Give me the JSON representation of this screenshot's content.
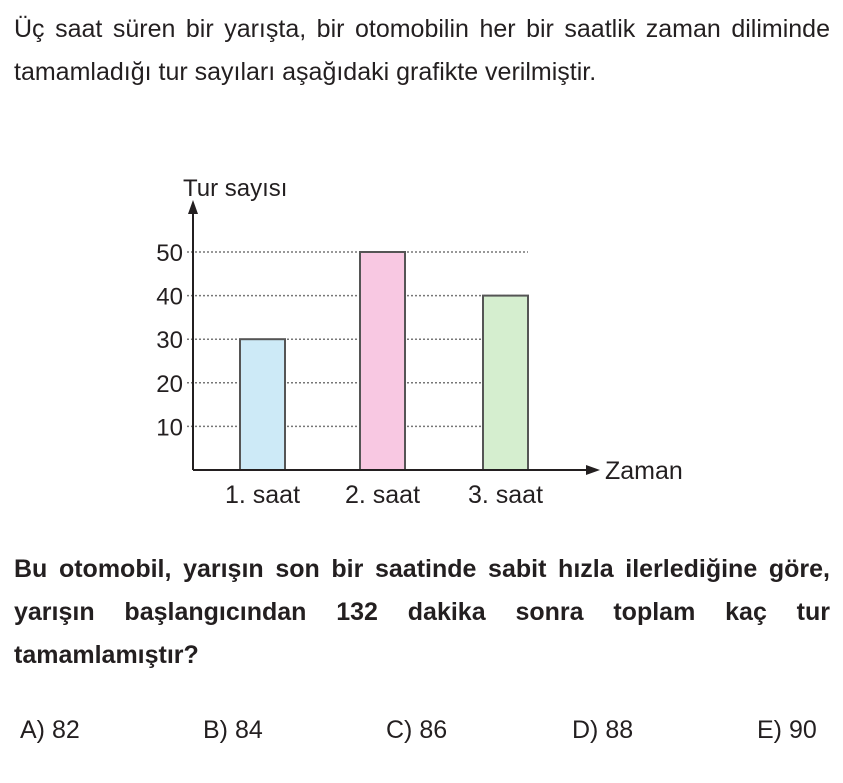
{
  "intro": "Üç saat süren bir yarışta, bir otomobilin her bir saatlik zaman diliminde tamamladığı tur sayıları aşağıdaki grafikte verilmiştir.",
  "question": "Bu otomobil, yarışın son bir saatinde sabit hızla ilerlediğine göre, yarışın başlangıcından 132 dakika sonra toplam kaç tur tamamlamıştır?",
  "answers": [
    "A) 82",
    "B) 84",
    "C) 86",
    "D) 88",
    "E) 90"
  ],
  "chart_data": {
    "type": "bar",
    "ylabel": "Tur sayısı",
    "xlabel": "Zaman",
    "categories": [
      "1. saat",
      "2. saat",
      "3. saat"
    ],
    "values": [
      30,
      50,
      40
    ],
    "colors": [
      "#cdeaf7",
      "#f8c8e2",
      "#d5eecf"
    ],
    "yticks": [
      "10",
      "20",
      "30",
      "40",
      "50"
    ],
    "ylim": [
      0,
      50
    ],
    "grid": "dotted horizontal"
  }
}
